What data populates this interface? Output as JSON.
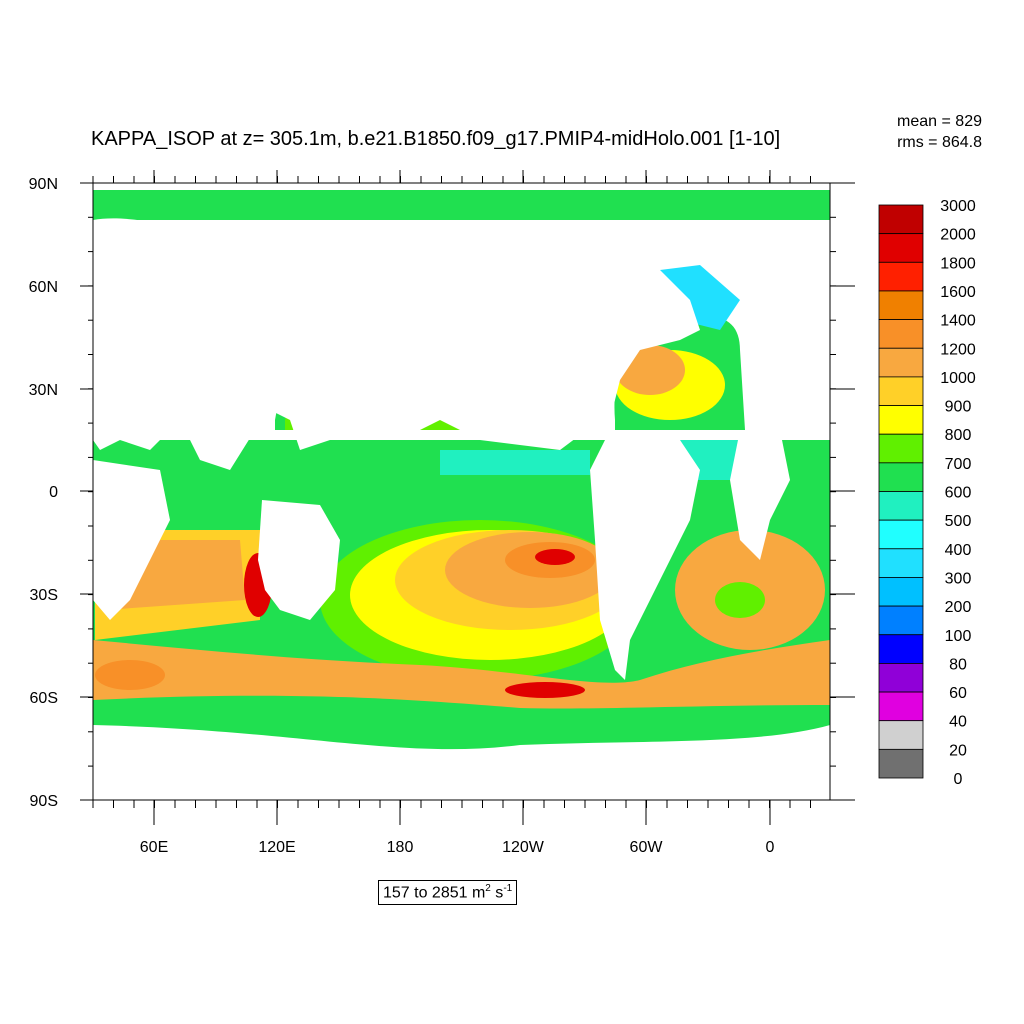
{
  "title": "KAPPA_ISOP at z= 305.1m, b.e21.B1850.f09_g17.PMIP4-midHolo.001 [1-10]",
  "stats": {
    "mean": "mean = 829",
    "rms": "rms = 864.8"
  },
  "range": {
    "prefix": "157 to 2851 m",
    "exp1": "2",
    "mid": " s",
    "exp2": "-1"
  },
  "axes": {
    "lat_labels": [
      "90N",
      "60N",
      "30N",
      "0",
      "30S",
      "60S",
      "90S"
    ],
    "lon_labels": [
      "60E",
      "120E",
      "180",
      "120W",
      "60W",
      "0"
    ]
  },
  "colorbar": {
    "labels": [
      "3000",
      "2000",
      "1800",
      "1600",
      "1400",
      "1200",
      "1000",
      "900",
      "800",
      "700",
      "600",
      "500",
      "400",
      "300",
      "200",
      "100",
      "80",
      "60",
      "40",
      "20",
      "0"
    ],
    "colors": [
      "#c00000",
      "#e00000",
      "#ff2000",
      "#f08000",
      "#f89028",
      "#f8a840",
      "#ffd028",
      "#ffff00",
      "#60f000",
      "#20e050",
      "#20f0c0",
      "#20ffff",
      "#20e0ff",
      "#00c0ff",
      "#0080ff",
      "#0000ff",
      "#9000d8",
      "#e000e0",
      "#d0d0d0",
      "#707070"
    ]
  },
  "map_colors": {
    "land": "#ffffff",
    "v600": "#20f0c0",
    "v700": "#20e050",
    "v800": "#60f000",
    "v900": "#ffff00",
    "v1000": "#ffd028",
    "v1200": "#f8a840",
    "v1400": "#f89028",
    "v1600": "#f08000",
    "v2000": "#e00000",
    "v3000": "#c00000",
    "v500": "#20ffff",
    "v400": "#20e0ff"
  }
}
